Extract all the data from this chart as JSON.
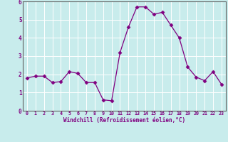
{
  "x": [
    0,
    1,
    2,
    3,
    4,
    5,
    6,
    7,
    8,
    9,
    10,
    11,
    12,
    13,
    14,
    15,
    16,
    17,
    18,
    19,
    20,
    21,
    22,
    23
  ],
  "y": [
    1.8,
    1.9,
    1.9,
    1.55,
    1.6,
    2.15,
    2.05,
    1.55,
    1.55,
    0.6,
    0.55,
    3.2,
    4.6,
    5.7,
    5.7,
    5.3,
    5.4,
    4.7,
    4.0,
    2.4,
    1.85,
    1.65,
    2.15,
    1.45
  ],
  "line_color": "#800080",
  "marker": "D",
  "marker_size": 2.5,
  "bg_color": "#c8ecec",
  "grid_color": "#ffffff",
  "xlabel": "Windchill (Refroidissement éolien,°C)",
  "xlabel_color": "#800080",
  "tick_color": "#800080",
  "xlim": [
    -0.5,
    23.5
  ],
  "ylim": [
    0,
    6
  ],
  "yticks": [
    0,
    1,
    2,
    3,
    4,
    5,
    6
  ],
  "xticks": [
    0,
    1,
    2,
    3,
    4,
    5,
    6,
    7,
    8,
    9,
    10,
    11,
    12,
    13,
    14,
    15,
    16,
    17,
    18,
    19,
    20,
    21,
    22,
    23
  ]
}
